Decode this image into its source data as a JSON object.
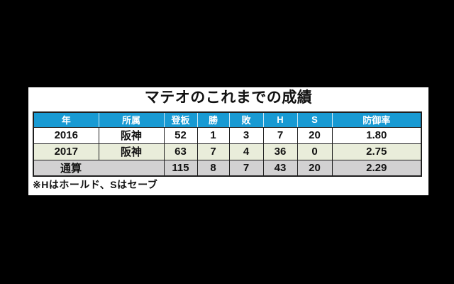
{
  "colors": {
    "page_bg": "#000000",
    "panel_bg": "#ffffff",
    "header_bg": "#189ad3",
    "header_text": "#ffffff",
    "header_divider": "#cfe9f6",
    "row_2016_bg": "#ffffff",
    "row_2017_bg": "#e9edda",
    "row_total_bg": "#d2d1d2",
    "border": "#1f1f1f",
    "text": "#111111"
  },
  "title": "マテオのこれまでの成績",
  "table": {
    "headers": [
      "年",
      "所属",
      "登板",
      "勝",
      "敗",
      "H",
      "S",
      "防御率"
    ],
    "rows": [
      [
        "2016",
        "阪神",
        "52",
        "1",
        "3",
        "7",
        "20",
        "1.80"
      ],
      [
        "2017",
        "阪神",
        "63",
        "7",
        "4",
        "36",
        "0",
        "2.75"
      ]
    ],
    "total_row": [
      "通算",
      "115",
      "8",
      "7",
      "43",
      "20",
      "2.29"
    ]
  },
  "footnote": "※Hはホールド、Sはセーブ",
  "chart_data": {
    "type": "table",
    "title": "マテオのこれまでの成績",
    "columns": [
      "年",
      "所属",
      "登板",
      "勝",
      "敗",
      "H",
      "S",
      "防御率"
    ],
    "rows": [
      {
        "年": "2016",
        "所属": "阪神",
        "登板": 52,
        "勝": 1,
        "敗": 3,
        "H": 7,
        "S": 20,
        "防御率": 1.8
      },
      {
        "年": "2017",
        "所属": "阪神",
        "登板": 63,
        "勝": 7,
        "敗": 4,
        "H": 36,
        "S": 0,
        "防御率": 2.75
      },
      {
        "年": "通算",
        "所属": "",
        "登板": 115,
        "勝": 8,
        "敗": 7,
        "H": 43,
        "S": 20,
        "防御率": 2.29
      }
    ],
    "footnote": "※Hはホールド、Sはセーブ",
    "layout": "total row merges 年+所属 columns; blue header with white text; 2017 row pale green; total row gray; panel letterboxed on black"
  }
}
